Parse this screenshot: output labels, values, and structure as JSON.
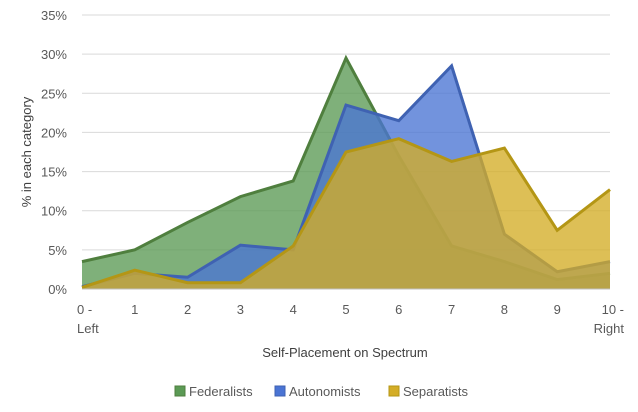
{
  "chart_data": {
    "type": "area",
    "title": "",
    "xlabel": "Self-Placement on Spectrum",
    "ylabel": "% in each category",
    "categories": [
      [
        "0 -",
        "Left"
      ],
      [
        "1"
      ],
      [
        "2"
      ],
      [
        "3"
      ],
      [
        "4"
      ],
      [
        "5"
      ],
      [
        "6"
      ],
      [
        "7"
      ],
      [
        "8"
      ],
      [
        "9"
      ],
      [
        "10 -",
        "Right"
      ]
    ],
    "y_ticks": [
      "0%",
      "5%",
      "10%",
      "15%",
      "20%",
      "25%",
      "30%",
      "35%"
    ],
    "ylim": [
      0,
      35
    ],
    "grid": true,
    "legend_position": "bottom",
    "series": [
      {
        "name": "Federalists",
        "color": "#5B9A55",
        "stroke": "#4F7F3E",
        "values": [
          3.5,
          5.0,
          8.5,
          11.8,
          13.8,
          29.5,
          17.0,
          5.5,
          3.5,
          1.2,
          2.0
        ]
      },
      {
        "name": "Autonomists",
        "color": "#4A74D4",
        "stroke": "#3F62B2",
        "values": [
          0.3,
          2.0,
          1.5,
          5.6,
          5.0,
          23.5,
          21.5,
          28.5,
          7.0,
          2.2,
          3.5
        ]
      },
      {
        "name": "Separatists",
        "color": "#D4AD27",
        "stroke": "#B49615",
        "values": [
          0.2,
          2.4,
          0.8,
          0.8,
          5.5,
          17.5,
          19.2,
          16.3,
          18.0,
          7.5,
          12.7
        ]
      }
    ]
  }
}
